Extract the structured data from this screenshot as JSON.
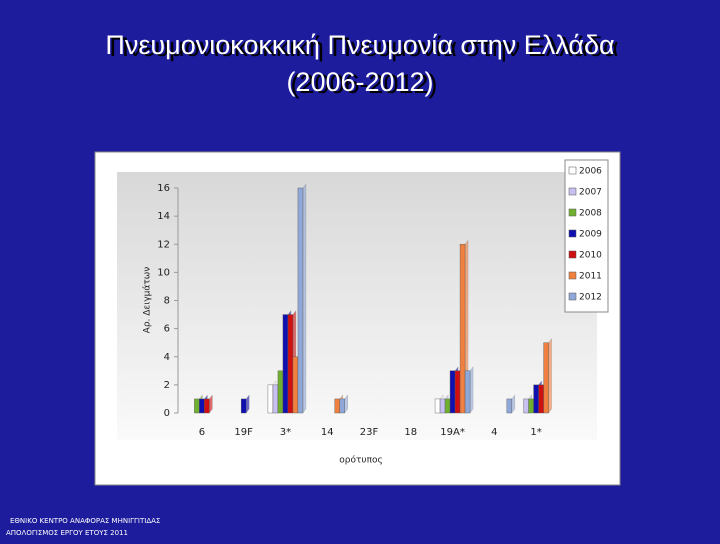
{
  "chart_data": {
    "type": "bar",
    "title": "Πνευμονιοκοκκική Πνευμονία στην Ελλάδα",
    "subtitle": "(2006-2012)",
    "y_label": "Αρ. Δειγμάτων",
    "x_label": "ορότυπος",
    "categories": [
      "6",
      "19F",
      "3*",
      "14",
      "23F",
      "18",
      "19A*",
      "4",
      "1*"
    ],
    "series": [
      {
        "name": "2006",
        "color": "#ffffff",
        "values": [
          0,
          0,
          2,
          0,
          0,
          0,
          1,
          0,
          0
        ]
      },
      {
        "name": "2007",
        "color": "#c8c0f0",
        "values": [
          0,
          0,
          2,
          0,
          0,
          0,
          1,
          0,
          1
        ]
      },
      {
        "name": "2008",
        "color": "#70b030",
        "values": [
          1,
          0,
          3,
          0,
          0,
          0,
          1,
          0,
          1
        ]
      },
      {
        "name": "2009",
        "color": "#1010b0",
        "values": [
          1,
          1,
          7,
          0,
          0,
          0,
          3,
          0,
          2
        ]
      },
      {
        "name": "2010",
        "color": "#d01010",
        "values": [
          1,
          0,
          7,
          0,
          0,
          0,
          3,
          0,
          2
        ]
      },
      {
        "name": "2011",
        "color": "#f08040",
        "values": [
          0,
          0,
          4,
          1,
          0,
          0,
          12,
          0,
          5
        ]
      },
      {
        "name": "2012",
        "color": "#90a8d8",
        "values": [
          0,
          0,
          16,
          1,
          0,
          0,
          3,
          1,
          0
        ]
      }
    ],
    "ylim": [
      0,
      16
    ],
    "yticks": [
      0,
      2,
      4,
      6,
      8,
      10,
      12,
      14,
      16
    ],
    "grid": false
  },
  "footer": {
    "line1": "ΕΘΝΙΚΟ ΚΕΝΤΡΟ ΑΝΑΦΟΡΑΣ ΜΗΝΙΓΓΙΤΙΔΑΣ",
    "line2": "ΑΠΟΛΟΓΙΣΜΟΣ ΕΡΓΟΥ ΕΤΟΥΣ 2011"
  }
}
